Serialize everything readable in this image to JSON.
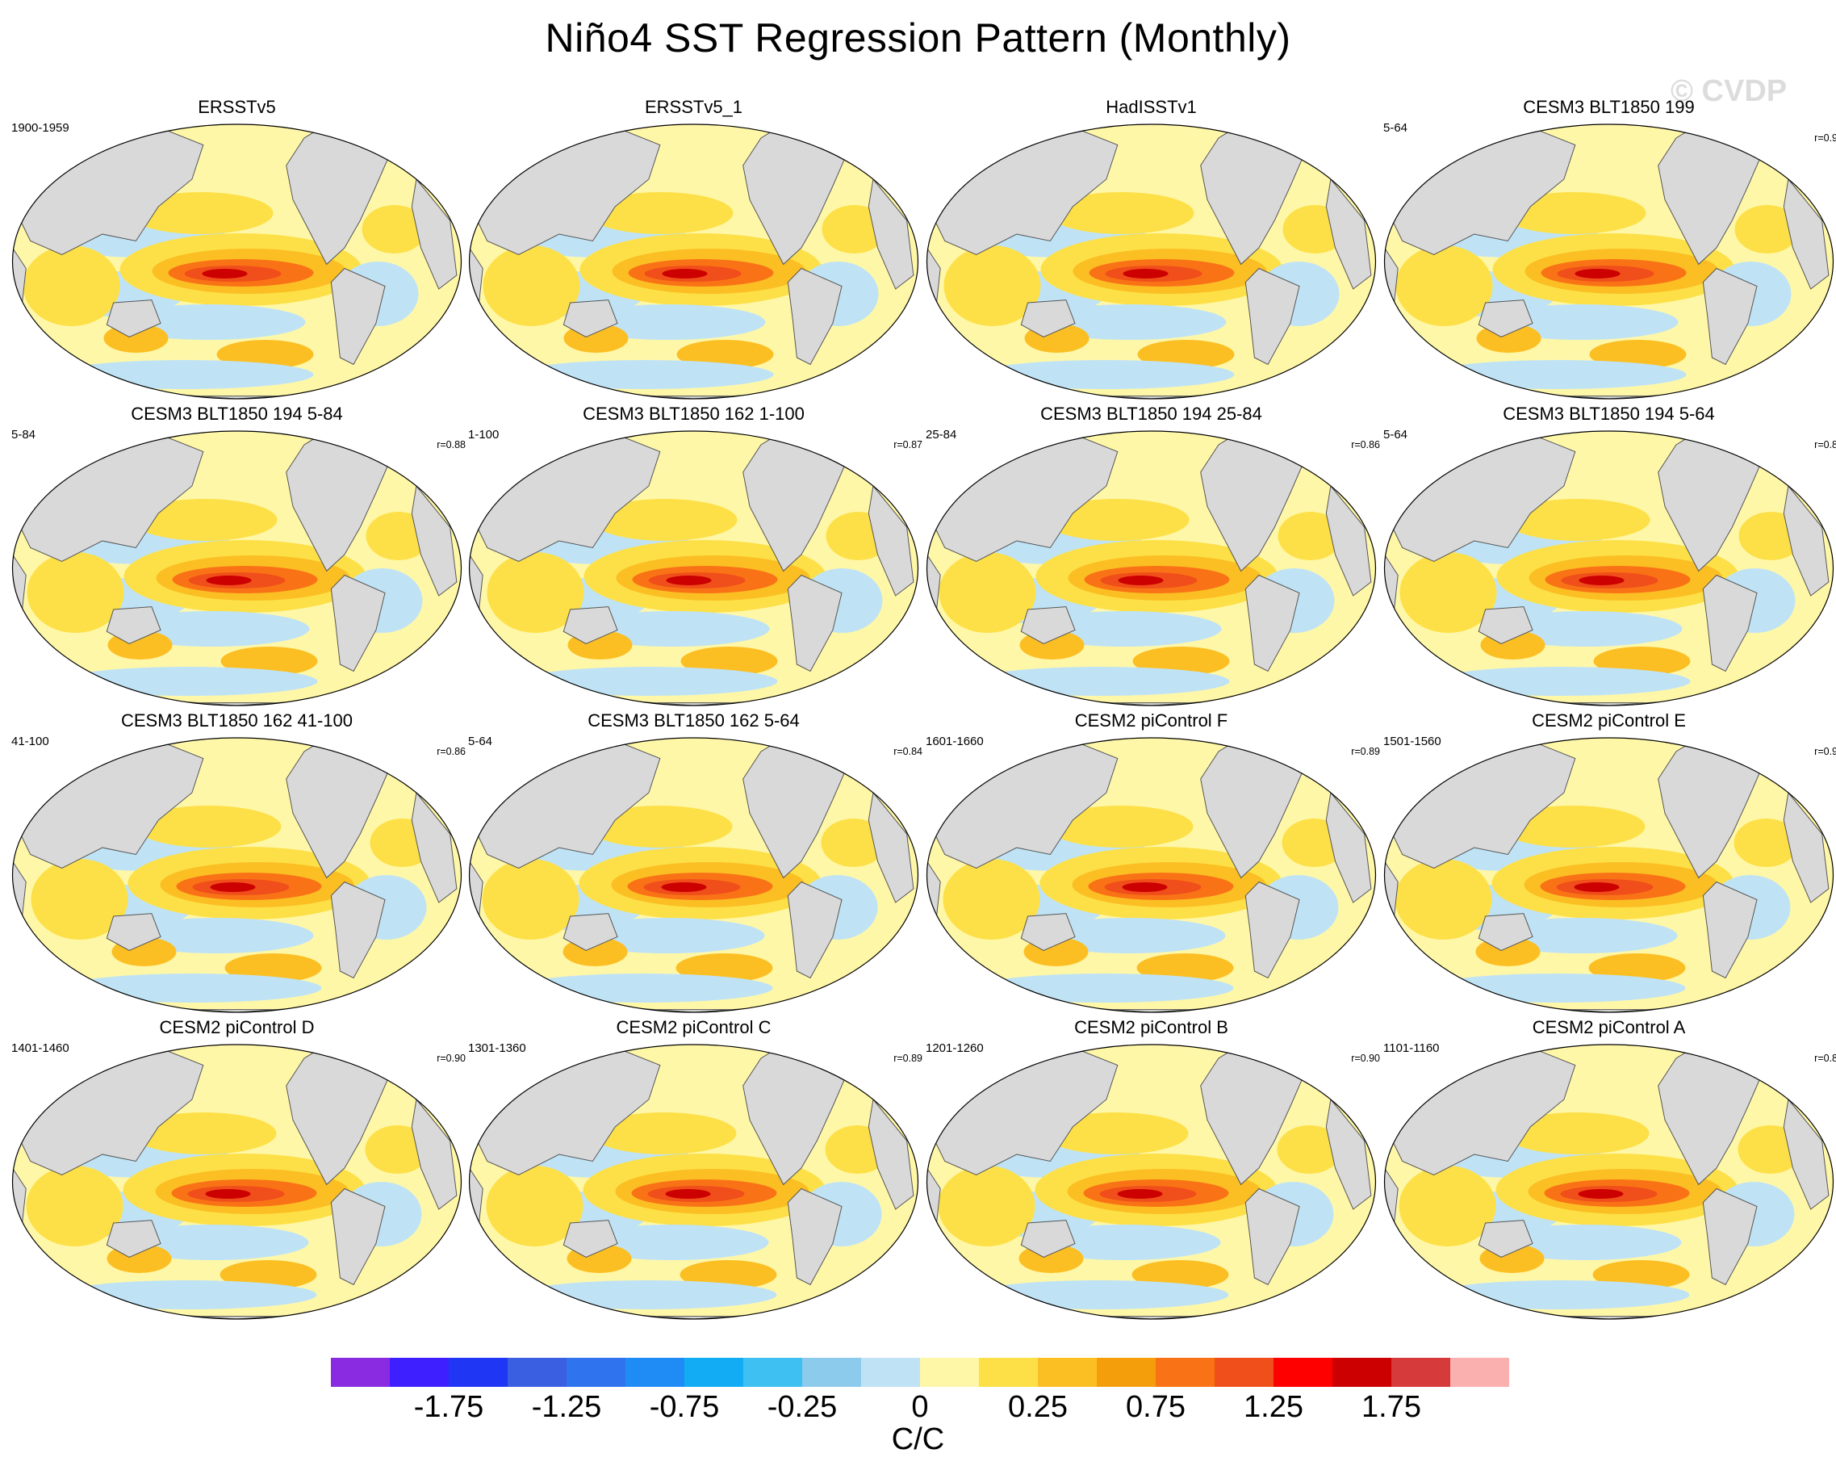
{
  "title": "Niño4 SST Regression Pattern (Monthly)",
  "watermark": "© CVDP",
  "panels": [
    {
      "title": "ERSSTv5",
      "period": "1900-1959",
      "corr": ""
    },
    {
      "title": "ERSSTv5_1",
      "period": "",
      "corr": ""
    },
    {
      "title": "HadISSTv1",
      "period": "",
      "corr": ""
    },
    {
      "title": "CESM3 BLT1850 199",
      "period": "5-64",
      "corr": "r=0.9"
    },
    {
      "title": "CESM3 BLT1850 194 5-84",
      "period": "5-84",
      "corr": "r=0.88"
    },
    {
      "title": "CESM3 BLT1850 162 1-100",
      "period": "1-100",
      "corr": "r=0.87"
    },
    {
      "title": "CESM3 BLT1850 194 25-84",
      "period": "25-84",
      "corr": "r=0.86"
    },
    {
      "title": "CESM3 BLT1850 194 5-64",
      "period": "5-64",
      "corr": "r=0.8"
    },
    {
      "title": "CESM3 BLT1850 162 41-100",
      "period": "41-100",
      "corr": "r=0.86"
    },
    {
      "title": "CESM3 BLT1850 162 5-64",
      "period": "5-64",
      "corr": "r=0.84"
    },
    {
      "title": "CESM2 piControl F",
      "period": "1601-1660",
      "corr": "r=0.89"
    },
    {
      "title": "CESM2 piControl E",
      "period": "1501-1560",
      "corr": "r=0.9"
    },
    {
      "title": "CESM2 piControl D",
      "period": "1401-1460",
      "corr": "r=0.90"
    },
    {
      "title": "CESM2 piControl C",
      "period": "1301-1360",
      "corr": "r=0.89"
    },
    {
      "title": "CESM2 piControl B",
      "period": "1201-1260",
      "corr": "r=0.90"
    },
    {
      "title": "CESM2 piControl A",
      "period": "1101-1160",
      "corr": "r=0.8"
    }
  ],
  "colorbar": {
    "colors": [
      "#8a2be2",
      "#3d1fff",
      "#1f36f5",
      "#3a5fe0",
      "#2f74ee",
      "#1f8cf5",
      "#12acf5",
      "#3ec0f2",
      "#8dcbed",
      "#bfe3f5",
      "#fff7a8",
      "#fde047",
      "#fbbf24",
      "#f59e0b",
      "#f97316",
      "#f04e1a",
      "#ff0000",
      "#cc0000",
      "#d63a3a",
      "#fbb0b0"
    ],
    "labels": [
      "-1.75",
      "-1.25",
      "-0.75",
      "-0.25",
      "0",
      "0.25",
      "0.75",
      "1.25",
      "1.75"
    ],
    "units": "C/C"
  },
  "map_colors": {
    "ocean_neutral": "#fff7a8",
    "land": "#d9d9d9",
    "coast": "#555555",
    "pos1": "#fde047",
    "pos2": "#fbbf24",
    "pos3": "#f97316",
    "pos4": "#f04e1a",
    "pos5": "#cc0000",
    "neg1": "#bfe3f5",
    "neg2": "#8dcbed"
  }
}
